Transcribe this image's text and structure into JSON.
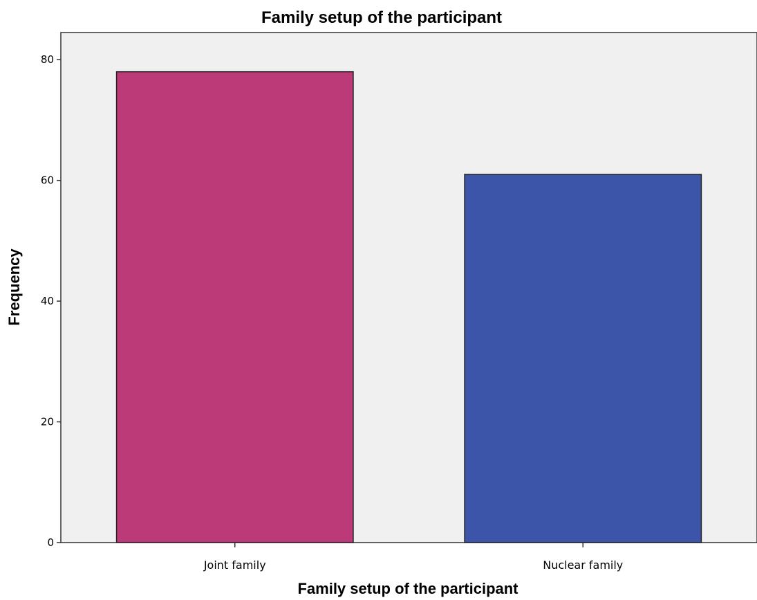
{
  "chart_data": {
    "type": "bar",
    "title": "Family setup of the participant",
    "xlabel": "Family setup of the participant",
    "ylabel": "Frequency",
    "categories": [
      "Joint family",
      "Nuclear family"
    ],
    "values": [
      78,
      61
    ],
    "yticks": [
      0,
      20,
      40,
      60,
      80
    ],
    "ylim": [
      0,
      84.5
    ],
    "grid": false,
    "colors": {
      "plot_background": "#f0f0f0",
      "bars": [
        "#bc3a78",
        "#3d55a8"
      ],
      "bar_outline": "#222222"
    }
  }
}
